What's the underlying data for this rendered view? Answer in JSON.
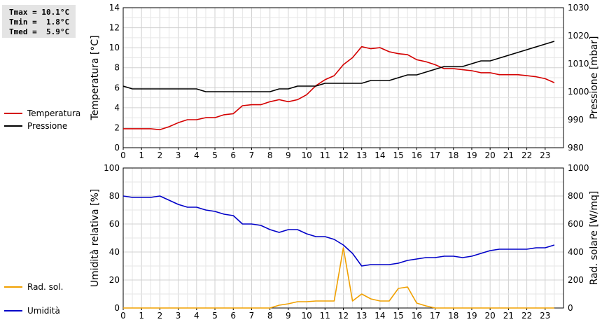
{
  "stats": {
    "lines": [
      "Tmax = 10.1°C",
      "Tmin =  1.8°C",
      "Tmed =  5.9°C"
    ]
  },
  "legend_top": [
    {
      "label": "Temperatura",
      "color": "#d40000"
    },
    {
      "label": "Pressione",
      "color": "#000000"
    }
  ],
  "legend_bottom": [
    {
      "label": "Umidità",
      "color": "#0000c8"
    },
    {
      "label": "Rad. sol.",
      "color": "#f0a000"
    }
  ],
  "chart_data": [
    {
      "type": "line",
      "xlabel": "",
      "x_ticks": [
        "0",
        "1",
        "2",
        "3",
        "4",
        "5",
        "6",
        "7",
        "8",
        "9",
        "10",
        "11",
        "12",
        "13",
        "14",
        "15",
        "16",
        "17",
        "18",
        "19",
        "20",
        "21",
        "22",
        "23"
      ],
      "xlim": [
        0,
        24
      ],
      "grid": true,
      "ylabel": "Temperatura [°C]",
      "ylim": [
        0,
        14
      ],
      "y_ticks": [
        0,
        2,
        4,
        6,
        8,
        10,
        12,
        14
      ],
      "y2label": "Pressione [mbar]",
      "y2lim": [
        980,
        1030
      ],
      "y2_ticks": [
        980,
        990,
        1000,
        1010,
        1020,
        1030
      ],
      "series": [
        {
          "name": "Temperatura",
          "axis": "left",
          "color": "#d40000",
          "x": [
            0,
            0.5,
            1,
            1.5,
            2,
            2.5,
            3,
            3.5,
            4,
            4.5,
            5,
            5.5,
            6,
            6.5,
            7,
            7.5,
            8,
            8.5,
            9,
            9.5,
            10,
            10.5,
            11,
            11.5,
            12,
            12.5,
            13,
            13.5,
            14,
            14.5,
            15,
            15.5,
            16,
            16.5,
            17,
            17.5,
            18,
            18.5,
            19,
            19.5,
            20,
            20.5,
            21,
            21.5,
            22,
            22.5,
            23,
            23.5
          ],
          "y": [
            1.9,
            1.9,
            1.9,
            1.9,
            1.8,
            2.1,
            2.5,
            2.8,
            2.8,
            3.0,
            3.0,
            3.3,
            3.4,
            4.2,
            4.3,
            4.3,
            4.6,
            4.8,
            4.6,
            4.8,
            5.3,
            6.2,
            6.8,
            7.2,
            8.3,
            9.0,
            10.1,
            9.9,
            10.0,
            9.6,
            9.4,
            9.3,
            8.8,
            8.6,
            8.3,
            7.9,
            7.9,
            7.8,
            7.7,
            7.5,
            7.5,
            7.3,
            7.3,
            7.3,
            7.2,
            7.1,
            6.9,
            6.5
          ]
        },
        {
          "name": "Pressione",
          "axis": "right",
          "color": "#000000",
          "x": [
            0,
            0.5,
            1,
            1.5,
            2,
            2.5,
            3,
            3.5,
            4,
            4.5,
            5,
            5.5,
            6,
            6.5,
            7,
            7.5,
            8,
            8.5,
            9,
            9.5,
            10,
            10.5,
            11,
            11.5,
            12,
            12.5,
            13,
            13.5,
            14,
            14.5,
            15,
            15.5,
            16,
            16.5,
            17,
            17.5,
            18,
            18.5,
            19,
            19.5,
            20,
            20.5,
            21,
            21.5,
            22,
            22.5,
            23,
            23.5
          ],
          "y": [
            1002,
            1001,
            1001,
            1001,
            1001,
            1001,
            1001,
            1001,
            1001,
            1000,
            1000,
            1000,
            1000,
            1000,
            1000,
            1000,
            1000,
            1001,
            1001,
            1002,
            1002,
            1002,
            1003,
            1003,
            1003,
            1003,
            1003,
            1004,
            1004,
            1004,
            1005,
            1006,
            1006,
            1007,
            1008,
            1009,
            1009,
            1009,
            1010,
            1011,
            1011,
            1012,
            1013,
            1014,
            1015,
            1016,
            1017,
            1018
          ]
        }
      ]
    },
    {
      "type": "line",
      "xlabel": "",
      "x_ticks": [
        "0",
        "1",
        "2",
        "3",
        "4",
        "5",
        "6",
        "7",
        "8",
        "9",
        "10",
        "11",
        "12",
        "13",
        "14",
        "15",
        "16",
        "17",
        "18",
        "19",
        "20",
        "21",
        "22",
        "23"
      ],
      "xlim": [
        0,
        24
      ],
      "grid": true,
      "ylabel": "Umidità relativa [%]",
      "ylim": [
        0,
        100
      ],
      "y_ticks": [
        0,
        20,
        40,
        60,
        80,
        100
      ],
      "y2label": "Rad. solare [W/mq]",
      "y2lim": [
        0,
        1000
      ],
      "y2_ticks": [
        0,
        200,
        400,
        600,
        800,
        1000
      ],
      "series": [
        {
          "name": "Umidità",
          "axis": "left",
          "color": "#0000c8",
          "x": [
            0,
            0.5,
            1,
            1.5,
            2,
            2.5,
            3,
            3.5,
            4,
            4.5,
            5,
            5.5,
            6,
            6.5,
            7,
            7.5,
            8,
            8.5,
            9,
            9.5,
            10,
            10.5,
            11,
            11.5,
            12,
            12.5,
            13,
            13.5,
            14,
            14.5,
            15,
            15.5,
            16,
            16.5,
            17,
            17.5,
            18,
            18.5,
            19,
            19.5,
            20,
            20.5,
            21,
            21.5,
            22,
            22.5,
            23,
            23.5
          ],
          "y": [
            80,
            79,
            79,
            79,
            80,
            77,
            74,
            72,
            72,
            70,
            69,
            67,
            66,
            60,
            60,
            59,
            56,
            54,
            56,
            56,
            53,
            51,
            51,
            49,
            45,
            39,
            30,
            31,
            31,
            31,
            32,
            34,
            35,
            36,
            36,
            37,
            37,
            36,
            37,
            39,
            41,
            42,
            42,
            42,
            42,
            43,
            43,
            45
          ]
        },
        {
          "name": "Rad. sol.",
          "axis": "right",
          "color": "#f0a000",
          "x": [
            0,
            0.5,
            1,
            1.5,
            2,
            2.5,
            3,
            3.5,
            4,
            4.5,
            5,
            5.5,
            6,
            6.5,
            7,
            7.5,
            8,
            8.5,
            9,
            9.5,
            10,
            10.5,
            11,
            11.5,
            12,
            12.5,
            13,
            13.5,
            14,
            14.5,
            15,
            15.5,
            16,
            16.5,
            17,
            17.5,
            18,
            18.5,
            19,
            19.5,
            20,
            20.5,
            21,
            21.5,
            22,
            22.5,
            23,
            23.5
          ],
          "y": [
            0,
            0,
            0,
            0,
            0,
            0,
            0,
            0,
            0,
            0,
            0,
            0,
            0,
            0,
            0,
            0,
            0,
            20,
            30,
            45,
            45,
            50,
            50,
            50,
            430,
            50,
            100,
            65,
            50,
            50,
            140,
            150,
            35,
            15,
            0,
            0,
            0,
            0,
            0,
            0,
            0,
            0,
            0,
            0,
            0,
            0,
            0,
            0
          ]
        }
      ]
    }
  ]
}
